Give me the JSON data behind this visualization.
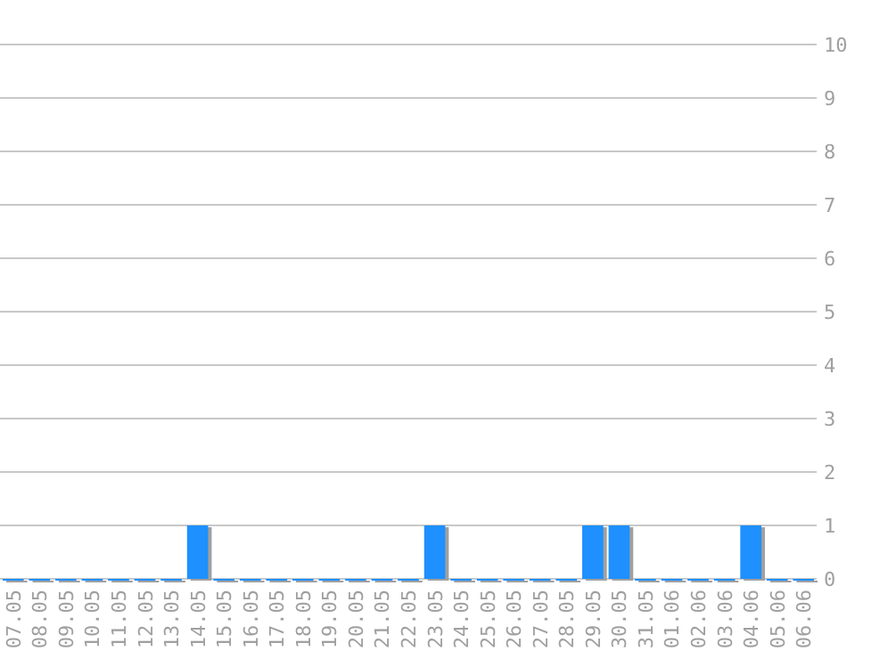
{
  "chart_data": {
    "type": "bar",
    "categories": [
      "07.05",
      "08.05",
      "09.05",
      "10.05",
      "11.05",
      "12.05",
      "13.05",
      "14.05",
      "15.05",
      "16.05",
      "17.05",
      "18.05",
      "19.05",
      "20.05",
      "21.05",
      "22.05",
      "23.05",
      "24.05",
      "25.05",
      "26.05",
      "27.05",
      "28.05",
      "29.05",
      "30.05",
      "31.05",
      "01.06",
      "02.06",
      "03.06",
      "04.06",
      "05.06",
      "06.06"
    ],
    "values": [
      0,
      0,
      0,
      0,
      0,
      0,
      0,
      1,
      0,
      0,
      0,
      0,
      0,
      0,
      0,
      0,
      1,
      0,
      0,
      0,
      0,
      0,
      1,
      1,
      0,
      0,
      0,
      0,
      1,
      0,
      0
    ],
    "color": "#1e90ff",
    "ylim": [
      0,
      10
    ],
    "yticks": [
      0,
      1,
      2,
      3,
      4,
      5,
      6,
      7,
      8,
      9,
      10
    ],
    "grid": "y"
  }
}
